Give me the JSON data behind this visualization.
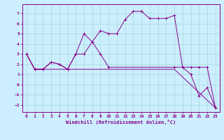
{
  "xlabel": "Windchill (Refroidissement éolien,°C)",
  "bg_color": "#cceeff",
  "line_color": "#880088",
  "grid_color": "#aadddd",
  "ylim": [
    -2.7,
    7.9
  ],
  "xlim": [
    -0.5,
    23.5
  ],
  "yticks": [
    -2,
    -1,
    0,
    1,
    2,
    3,
    4,
    5,
    6,
    7
  ],
  "xticks": [
    0,
    1,
    2,
    3,
    4,
    5,
    6,
    7,
    8,
    9,
    10,
    11,
    12,
    13,
    14,
    15,
    16,
    17,
    18,
    19,
    20,
    21,
    22,
    23
  ],
  "line1_x": [
    0,
    1,
    2,
    3,
    4,
    5,
    6,
    7,
    8,
    9,
    10,
    11,
    12,
    13,
    14,
    15,
    16,
    17,
    18,
    19,
    20,
    21,
    22,
    23
  ],
  "line1_y": [
    3.0,
    1.5,
    1.5,
    2.2,
    2.0,
    1.5,
    3.0,
    5.0,
    4.2,
    5.3,
    5.0,
    5.0,
    6.4,
    7.2,
    7.2,
    6.5,
    6.5,
    6.5,
    6.8,
    1.7,
    1.0,
    -1.1,
    -0.3,
    -2.3
  ],
  "line2_x": [
    0,
    1,
    2,
    3,
    4,
    5,
    6,
    7,
    8,
    9,
    10,
    18,
    19,
    20,
    21,
    22,
    23
  ],
  "line2_y": [
    3.0,
    1.5,
    1.5,
    2.2,
    2.0,
    1.5,
    3.0,
    3.0,
    4.2,
    3.0,
    1.7,
    1.7,
    1.7,
    1.7,
    1.7,
    1.7,
    -2.3
  ],
  "line3_x": [
    0,
    1,
    10,
    18,
    23
  ],
  "line3_y": [
    3.0,
    1.5,
    1.5,
    1.5,
    -2.3
  ]
}
